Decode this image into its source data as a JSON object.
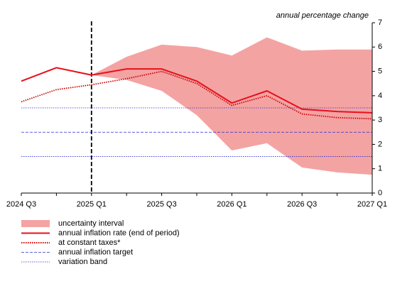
{
  "chart_data": {
    "type": "line",
    "y_axis_label": "annual percentage change",
    "categories": [
      "2024 Q3",
      null,
      "2025 Q1",
      null,
      "2025 Q3",
      null,
      "2026 Q1",
      null,
      "2026 Q3",
      null,
      "2027 Q1"
    ],
    "ylim": [
      0,
      7
    ],
    "yticks": [
      0,
      1,
      2,
      3,
      4,
      5,
      6,
      7
    ],
    "vertical_line_at": "2025 Q1",
    "band": {
      "name": "uncertainty interval",
      "color": "#f4a3a3",
      "upper": [
        null,
        null,
        4.85,
        5.6,
        6.1,
        6.0,
        5.65,
        6.4,
        5.85,
        5.9,
        5.9
      ],
      "lower": [
        null,
        null,
        4.85,
        4.65,
        4.2,
        3.2,
        1.75,
        2.05,
        1.05,
        0.85,
        0.75
      ]
    },
    "series": [
      {
        "name": "annual inflation rate (end of period)",
        "color": "#e8101a",
        "style": "solid",
        "values": [
          4.6,
          5.15,
          4.85,
          5.1,
          5.1,
          4.6,
          3.7,
          4.2,
          3.45,
          3.35,
          3.3
        ]
      },
      {
        "name": "at constant taxes*",
        "color": "#cc0000",
        "style": "dotted",
        "values": [
          3.75,
          4.25,
          4.45,
          4.7,
          5.0,
          4.5,
          3.6,
          4.0,
          3.25,
          3.1,
          3.05
        ]
      }
    ],
    "reference_lines": [
      {
        "name": "annual inflation target",
        "color": "#2a2ad0",
        "style": "dashed",
        "values": [
          2.5
        ]
      },
      {
        "name": "variation band",
        "color": "#2a2ad0",
        "style": "dotted",
        "values": [
          1.5,
          3.5
        ]
      }
    ]
  }
}
